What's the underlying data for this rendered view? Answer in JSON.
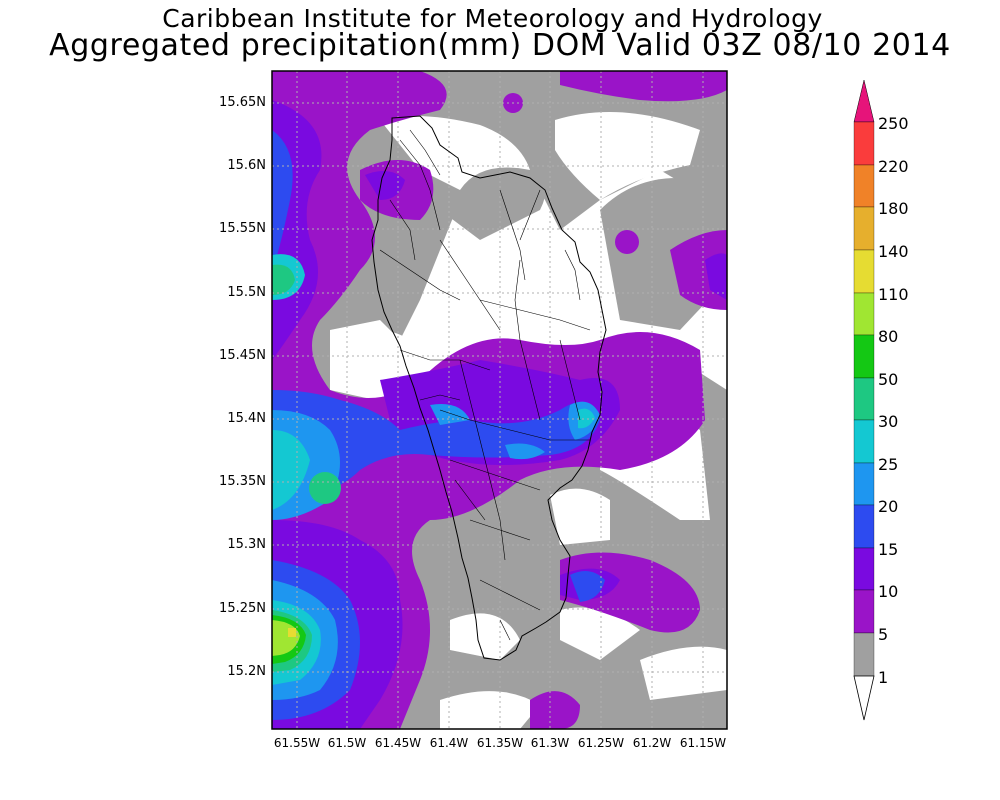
{
  "title": {
    "line1": "Caribbean Institute for Meteorology and Hydrology",
    "line2": "Aggregated precipitation(mm) DOM Valid 03Z 08/10 2014"
  },
  "map": {
    "lat_ticks": [
      "15.65N",
      "15.6N",
      "15.55N",
      "15.5N",
      "15.45N",
      "15.4N",
      "15.35N",
      "15.3N",
      "15.25N",
      "15.2N"
    ],
    "lon_ticks": [
      "61.55W",
      "61.5W",
      "61.45W",
      "61.4W",
      "61.35W",
      "61.3W",
      "61.25W",
      "61.2W",
      "61.15W"
    ]
  },
  "colorbar": {
    "levels": [
      "1",
      "5",
      "10",
      "15",
      "20",
      "25",
      "30",
      "50",
      "80",
      "110",
      "140",
      "180",
      "220",
      "250"
    ],
    "colors": {
      "below_1": "#ffffff",
      "1_5": "#a0a0a0",
      "5_10": "#9a14c8",
      "10_15": "#7a0ae0",
      "15_20": "#2d4bf0",
      "20_25": "#1e96f0",
      "25_30": "#14c8d2",
      "30_50": "#1ec882",
      "50_80": "#14c814",
      "80_110": "#a0e632",
      "110_140": "#e6dc32",
      "140_180": "#e6af2d",
      "180_220": "#f08228",
      "220_250": "#fa3c3c",
      "above_250": "#e6147a"
    }
  }
}
